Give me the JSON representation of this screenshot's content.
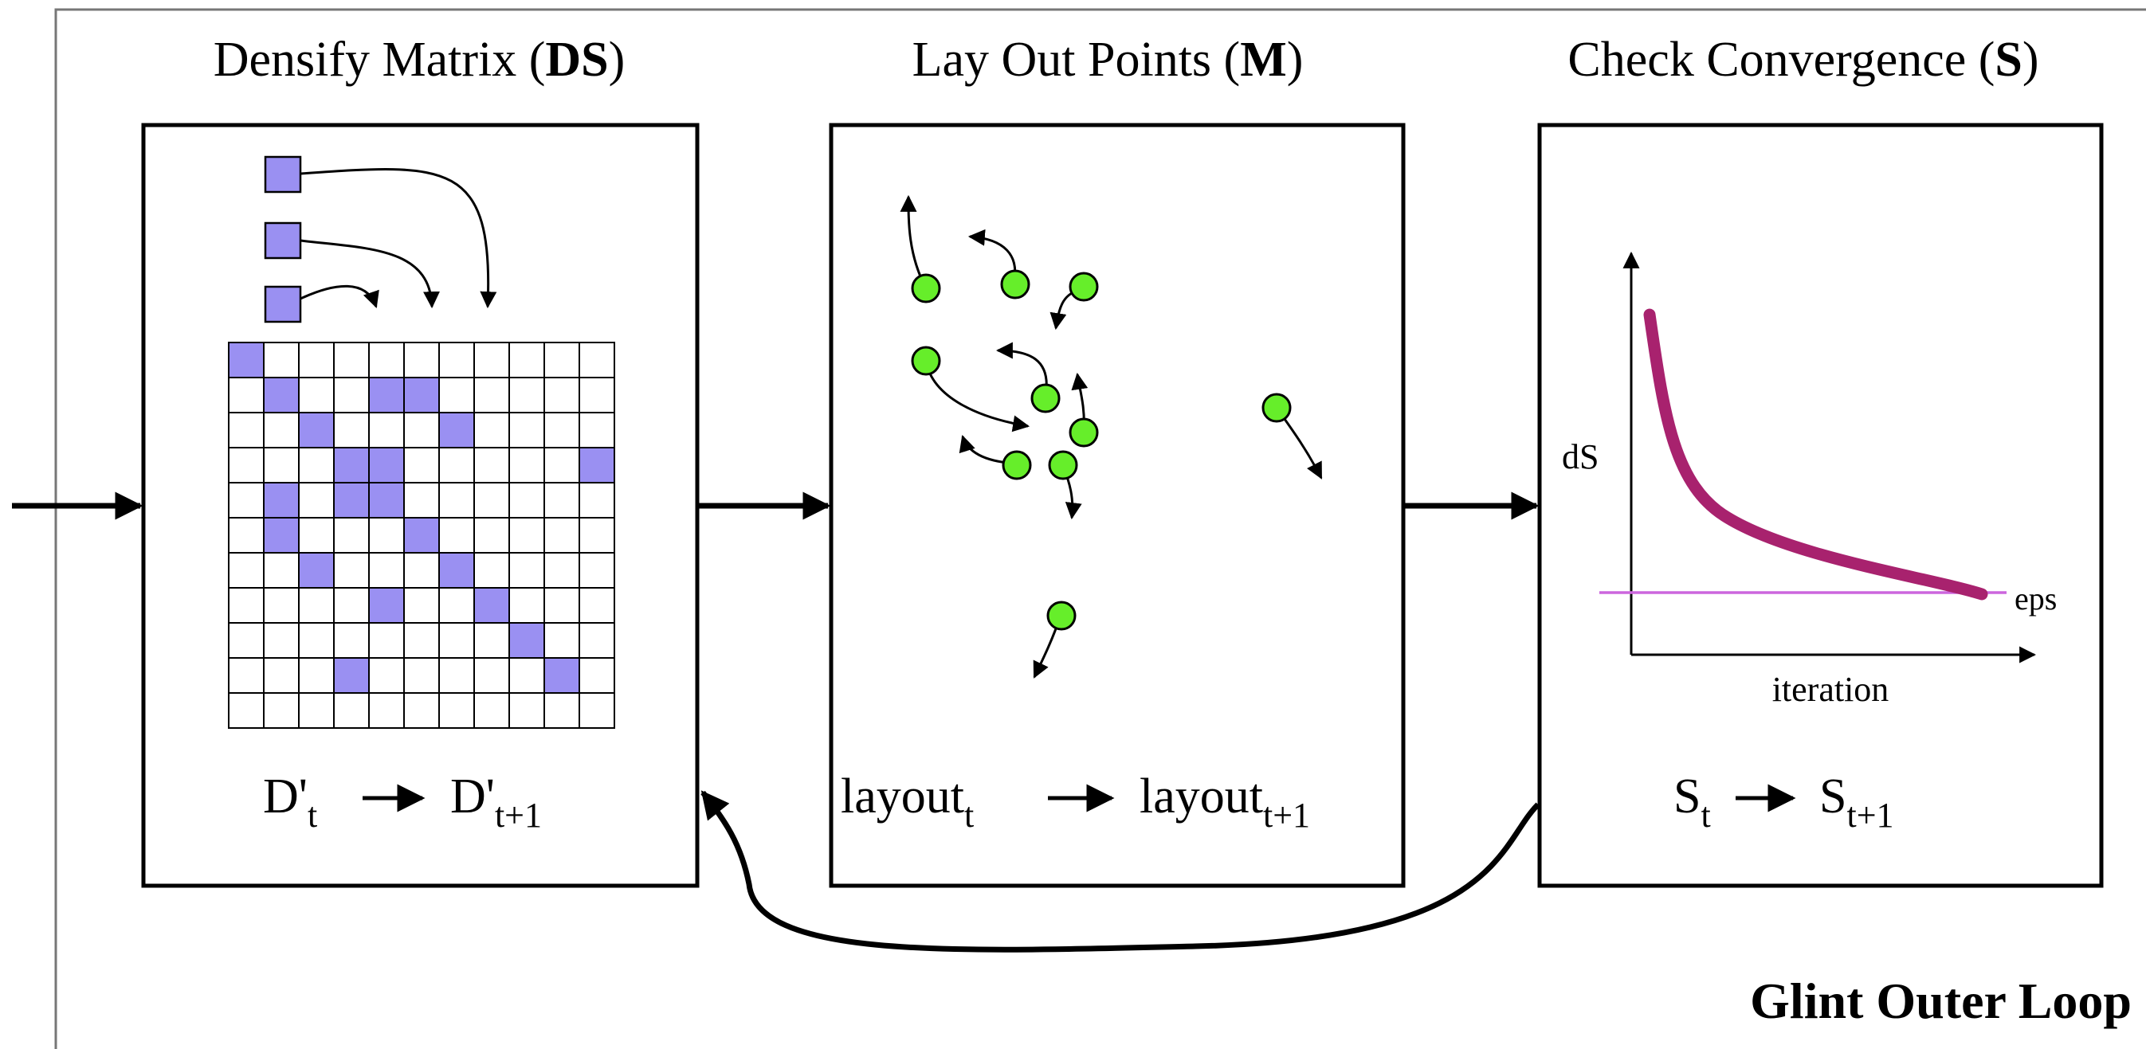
{
  "diagram": {
    "panels": [
      {
        "title_pre": "Densify Matrix (",
        "title_bold": "DS",
        "title_post": ")",
        "formula": {
          "left": "D'",
          "left_sub": "t",
          "right": "D'",
          "right_sub": "t+1"
        }
      },
      {
        "title_pre": "Lay Out Points (",
        "title_bold": "M",
        "title_post": ")",
        "formula": {
          "left": "layout",
          "left_sub": "t",
          "right": "layout",
          "right_sub": "t+1"
        }
      },
      {
        "title_pre": "Check Convergence (",
        "title_bold": "S",
        "title_post": ")",
        "formula": {
          "left": "S",
          "left_sub": "t",
          "right": "S",
          "right_sub": "t+1"
        }
      }
    ],
    "graph": {
      "ylabel": "dS",
      "xlabel": "iteration",
      "threshold_label": "eps"
    },
    "loop_label": "Glint Outer Loop",
    "matrix": {
      "size": 11,
      "filled_cells": [
        [
          0,
          0
        ],
        [
          1,
          1
        ],
        [
          1,
          4
        ],
        [
          1,
          5
        ],
        [
          2,
          2
        ],
        [
          2,
          6
        ],
        [
          3,
          3
        ],
        [
          3,
          4
        ],
        [
          3,
          10
        ],
        [
          4,
          1
        ],
        [
          4,
          3
        ],
        [
          4,
          4
        ],
        [
          5,
          1
        ],
        [
          5,
          5
        ],
        [
          6,
          2
        ],
        [
          6,
          6
        ],
        [
          7,
          4
        ],
        [
          7,
          7
        ],
        [
          8,
          8
        ],
        [
          9,
          3
        ],
        [
          9,
          9
        ]
      ]
    },
    "colors": {
      "matrix_fill": "#9a90f2",
      "node_fill": "#66ee2a",
      "curve": "#a8226e",
      "threshold": "#cc66dd",
      "outline": "#000000"
    }
  }
}
